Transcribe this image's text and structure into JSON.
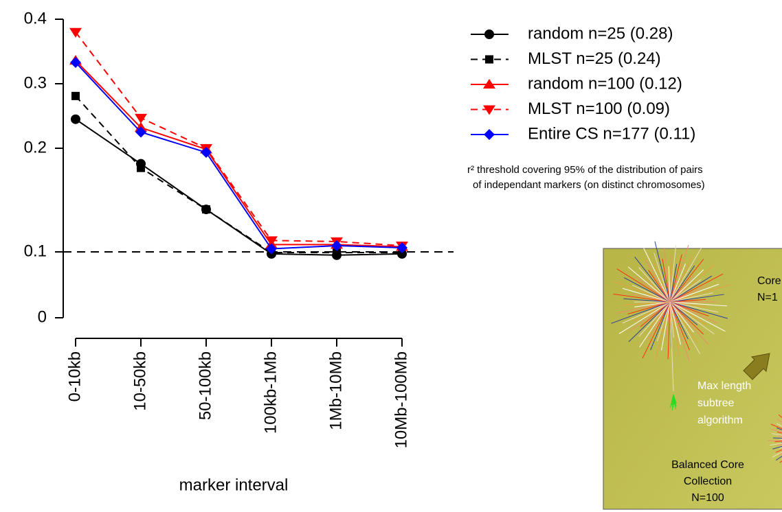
{
  "chart_data": {
    "type": "line",
    "x_label": "marker interval",
    "categories": [
      "0-10kb",
      "10-50kb",
      "50-100kb",
      "100kb-1Mb",
      "1Mb-10Mb",
      "10Mb-100Mb"
    ],
    "series": [
      {
        "name": "random n=25 (0.28)",
        "color": "#000000",
        "dash": false,
        "marker": "circle",
        "values": [
          0.245,
          0.185,
          0.141,
          0.097,
          0.095,
          0.097
        ]
      },
      {
        "name": "MLST n=25 (0.24)",
        "color": "#000000",
        "dash": true,
        "marker": "square",
        "values": [
          0.281,
          0.181,
          0.141,
          0.099,
          0.099,
          0.099
        ]
      },
      {
        "name": "random n=100 (0.12)",
        "color": "#ff0000",
        "dash": false,
        "marker": "triangle-up",
        "values": [
          0.336,
          0.232,
          0.199,
          0.107,
          0.107,
          0.105
        ]
      },
      {
        "name": "MLST n=100 (0.09)",
        "color": "#ff0000",
        "dash": true,
        "marker": "triangle-down",
        "values": [
          0.38,
          0.247,
          0.2,
          0.111,
          0.11,
          0.106
        ]
      },
      {
        "name": "Entire CS n=177 (0.11)",
        "color": "#0000ff",
        "dash": false,
        "marker": "diamond",
        "values": [
          0.333,
          0.225,
          0.196,
          0.103,
          0.106,
          0.104
        ]
      }
    ],
    "ylim": [
      0,
      0.4
    ],
    "yticks": [
      0,
      0.1,
      0.2,
      0.3,
      0.4
    ],
    "hline": 0.1,
    "annotation": [
      "r² threshold covering 95% of the distribution of pairs",
      "of independant markers (on distinct chromosomes)"
    ]
  },
  "inset": {
    "labels": [
      "Core",
      "N=1",
      "Max length",
      "subtree",
      "algorithm",
      "Balanced Core",
      "Collection",
      "N=100"
    ]
  }
}
